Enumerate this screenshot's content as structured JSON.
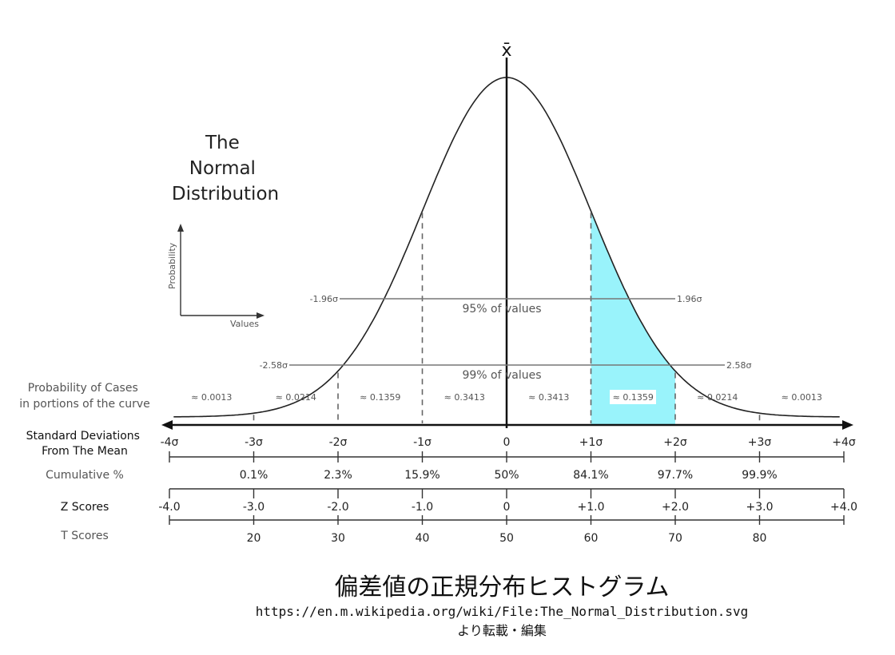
{
  "title_lines": [
    "The",
    "Normal",
    "Distribution"
  ],
  "xbar": "x̄",
  "mini_axes": {
    "y_label": "Probability",
    "x_label": "Values"
  },
  "intervals": {
    "ci95": {
      "left": "-1.96σ",
      "right": "1.96σ",
      "label": "95% of values"
    },
    "ci99": {
      "left": "-2.58σ",
      "right": "2.58σ",
      "label": "99% of values"
    }
  },
  "probability_cases": {
    "label": [
      "Probability of Cases",
      "in portions of the curve"
    ],
    "values": [
      "≈ 0.0013",
      "≈ 0.0214",
      "≈ 0.1359",
      "≈ 0.3413",
      "≈ 0.3413",
      "≈ 0.1359",
      "≈ 0.0214",
      "≈ 0.0013"
    ]
  },
  "highlight_segment_index": 5,
  "highlight_color": "#99f3fb",
  "rows": {
    "sd": {
      "label": [
        "Standard Deviations",
        "From The Mean"
      ],
      "ticks": [
        "-4σ",
        "-3σ",
        "-2σ",
        "-1σ",
        "0",
        "+1σ",
        "+2σ",
        "+3σ",
        "+4σ"
      ]
    },
    "cumulative": {
      "label": "Cumulative %",
      "values": [
        "0.1%",
        "2.3%",
        "15.9%",
        "50%",
        "84.1%",
        "97.7%",
        "99.9%"
      ]
    },
    "z": {
      "label": "Z Scores",
      "values": [
        "-4.0",
        "-3.0",
        "-2.0",
        "-1.0",
        "0",
        "+1.0",
        "+2.0",
        "+3.0",
        "+4.0"
      ]
    },
    "t": {
      "label": "T Scores",
      "values": [
        "20",
        "30",
        "40",
        "50",
        "60",
        "70",
        "80"
      ]
    }
  },
  "caption": {
    "title": "偏差値の正規分布ヒストグラム",
    "url": "https://en.m.wikipedia.org/wiki/File:The_Normal_Distribution.svg",
    "note": "より転載・編集"
  }
}
